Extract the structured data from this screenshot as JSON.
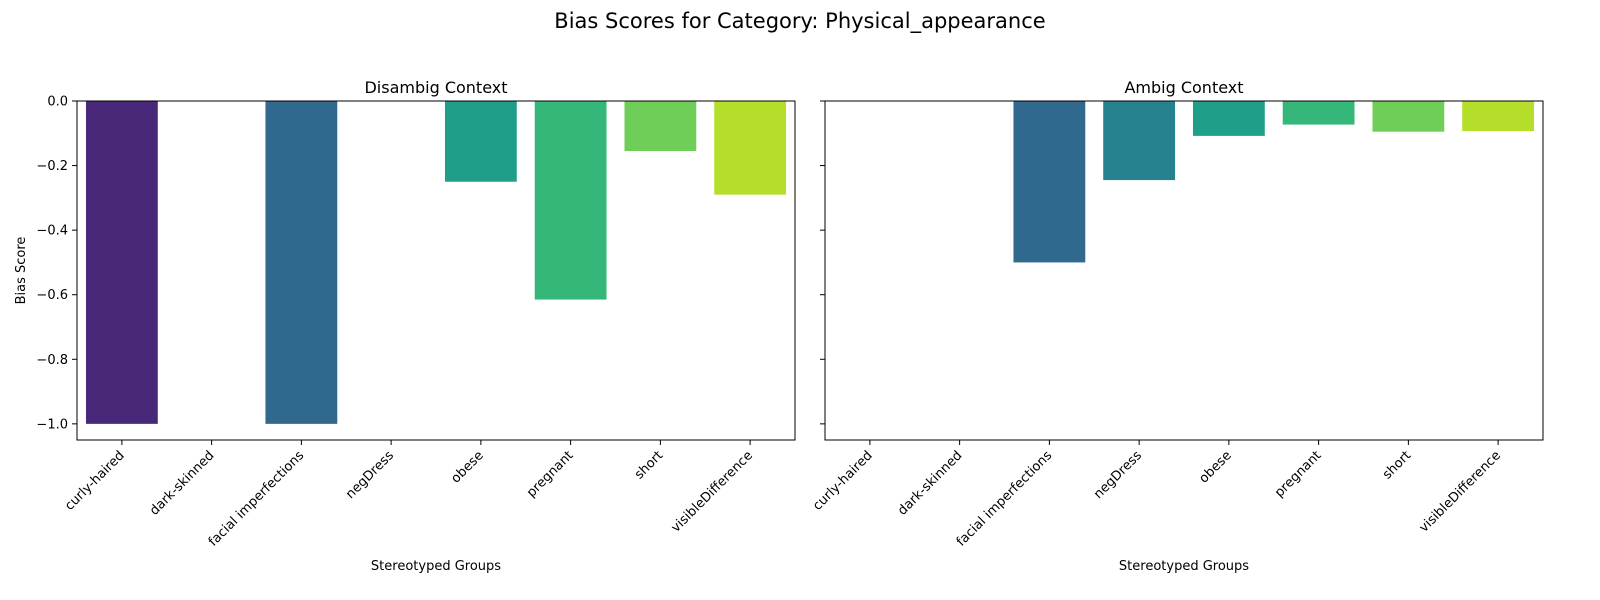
{
  "chart_data": {
    "type": "bar",
    "title": "Bias Scores for Category: Physical_appearance",
    "xlabel": "Stereotyped Groups",
    "ylabel": "Bias Score",
    "ylim": [
      -1.05,
      0.0
    ],
    "yticks": [
      0.0,
      -0.2,
      -0.4,
      -0.6,
      -0.8,
      -1.0
    ],
    "ytick_labels": [
      "0.0",
      "−0.2",
      "−0.4",
      "−0.6",
      "−0.8",
      "−1.0"
    ],
    "grid": false,
    "shared_y": true,
    "categories": [
      "curly-haired",
      "dark-skinned",
      "facial imperfections",
      "negDress",
      "obese",
      "pregnant",
      "short",
      "visibleDifference"
    ],
    "colors": [
      "#482878",
      "#3e4989",
      "#31688e",
      "#26828e",
      "#1f9e89",
      "#35b779",
      "#6ece58",
      "#b5de2b"
    ],
    "panels": [
      {
        "title": "Disambig Context",
        "values": [
          -1.0,
          null,
          -1.0,
          null,
          -0.25,
          -0.615,
          -0.155,
          -0.29
        ],
        "colors": [
          "#482878",
          null,
          "#31688e",
          null,
          "#1f9e89",
          "#35b779",
          "#6ece58",
          "#b5de2b"
        ]
      },
      {
        "title": "Ambig Context",
        "values": [
          null,
          null,
          -0.5,
          -0.245,
          -0.108,
          -0.073,
          -0.095,
          -0.093
        ],
        "colors": [
          null,
          null,
          "#31688e",
          "#26828e",
          "#1f9e89",
          "#35b779",
          "#6ece58",
          "#b5de2b"
        ]
      }
    ]
  }
}
